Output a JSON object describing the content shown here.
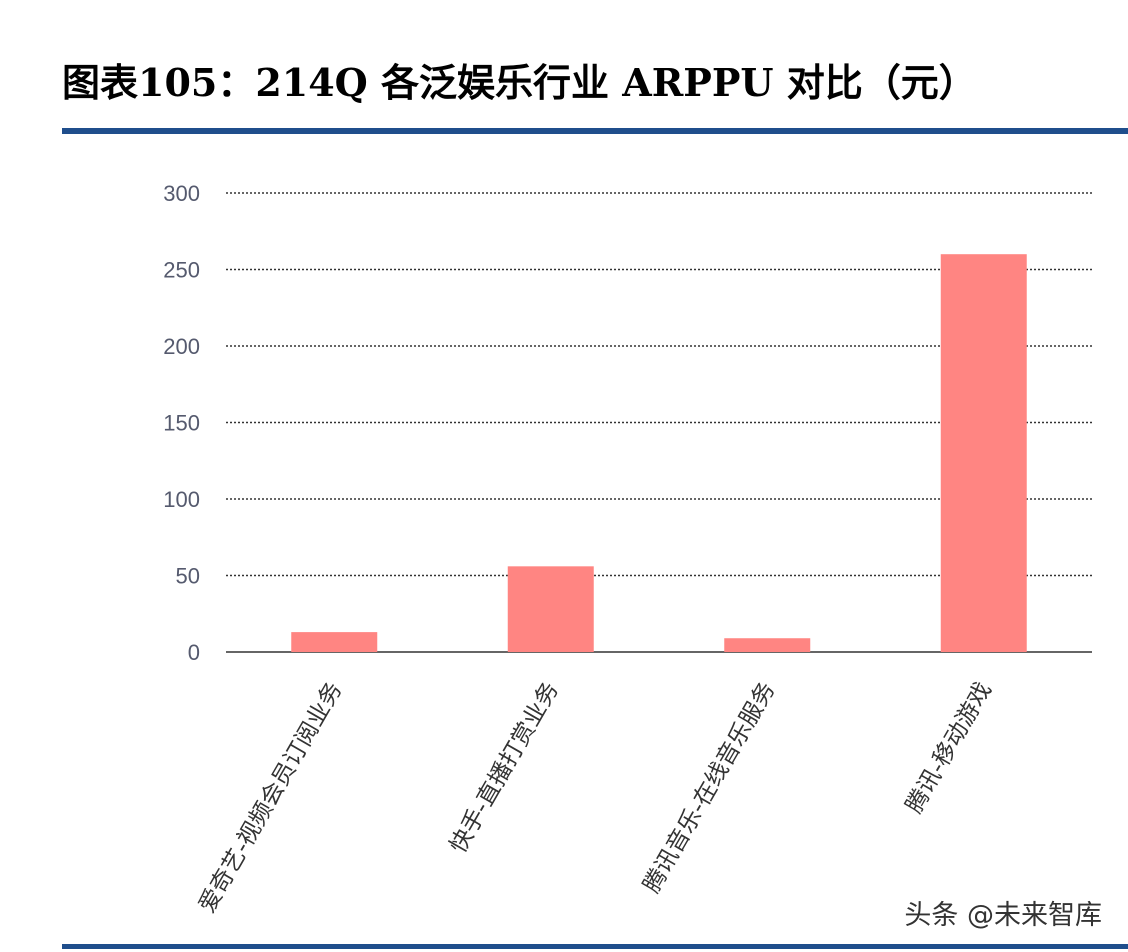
{
  "title": "图表105：214Q 各泛娱乐行业 ARPPU 对比（元）",
  "watermark": "头条 @未来智库",
  "colors": {
    "bar": "#ff8582",
    "rule": "#1f4e8c",
    "grid": "#333333"
  },
  "chart_data": {
    "type": "bar",
    "title": "图表105：214Q 各泛娱乐行业 ARPPU 对比（元）",
    "categories": [
      "爱奇艺-视频会员订阅业务",
      "快手-直播打赏业务",
      "腾讯音乐-在线音乐服务",
      "腾讯-移动游戏"
    ],
    "values": [
      13,
      56,
      9,
      260
    ],
    "ylim": [
      0,
      300
    ],
    "yticks": [
      0,
      50,
      100,
      150,
      200,
      250,
      300
    ],
    "grid": true,
    "legend": "none"
  }
}
